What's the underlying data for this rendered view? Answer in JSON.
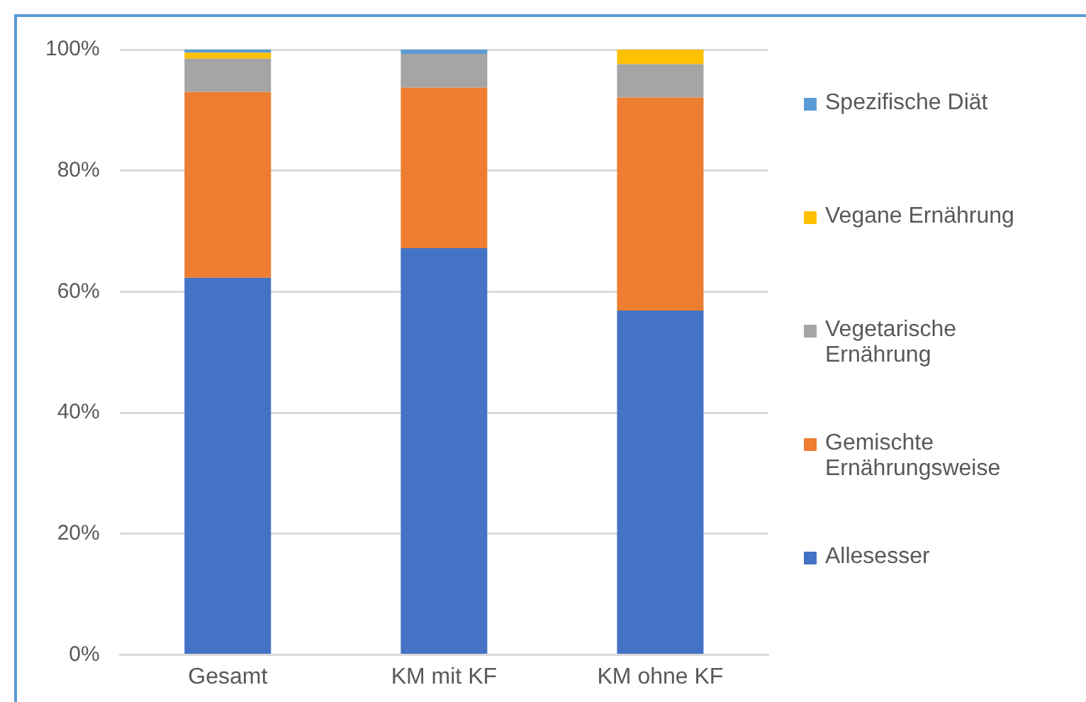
{
  "chart_data": {
    "type": "bar",
    "stacked": true,
    "categories": [
      "Gesamt",
      "KM mit KF",
      "KM ohne KF"
    ],
    "series": [
      {
        "name": "Allesesser",
        "color": "#4472c4",
        "values": [
          62.3,
          67.2,
          56.9
        ]
      },
      {
        "name": "Gemischte Ernährungsweise",
        "color": "#ed7d31",
        "values": [
          30.7,
          26.5,
          35.2
        ]
      },
      {
        "name": "Vegetarische Ernährung",
        "color": "#a5a5a5",
        "values": [
          5.5,
          5.6,
          5.5
        ]
      },
      {
        "name": "Vegane Ernährung",
        "color": "#ffc000",
        "values": [
          1.0,
          0,
          2.4
        ]
      },
      {
        "name": "Spezifische Diät",
        "color": "#5b9bd5",
        "values": [
          0.5,
          0.7,
          0
        ]
      }
    ],
    "ylim": [
      0,
      100
    ],
    "yticks": [
      {
        "value": 0,
        "label": "0%"
      },
      {
        "value": 20,
        "label": "20%"
      },
      {
        "value": 40,
        "label": "40%"
      },
      {
        "value": 60,
        "label": "60%"
      },
      {
        "value": 80,
        "label": "80%"
      },
      {
        "value": 100,
        "label": "100%"
      }
    ],
    "grid": "y",
    "legend": "right"
  }
}
